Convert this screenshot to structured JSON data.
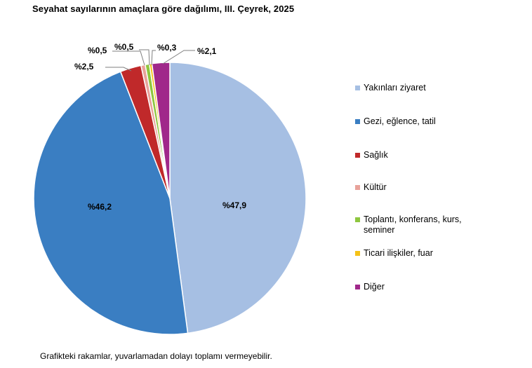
{
  "title": "Seyahat sayılarının amaçlara göre dağılımı, III. Çeyrek, 2025",
  "footnote": "Grafikteki rakamlar, yuvarlamadan dolayı toplamı vermeyebilir.",
  "chart_data": {
    "type": "pie",
    "categories": [
      "Yakınları ziyaret",
      "Gezi, eğlence, tatil",
      "Sağlık",
      "Kültür",
      "Toplantı, konferans, kurs, seminer",
      "Ticari ilişkiler, fuar",
      "Diğer"
    ],
    "values": [
      47.9,
      46.2,
      2.5,
      0.5,
      0.5,
      0.3,
      2.1
    ],
    "labels": [
      "%47,9",
      "%46,2",
      "%2,5",
      "%0,5",
      "%0,5",
      "%0,3",
      "%2,1"
    ],
    "colors": [
      "#a6bfe3",
      "#3a7ec2",
      "#c0292a",
      "#e8a29a",
      "#8ec63f",
      "#f5c218",
      "#a0288a"
    ],
    "legend_position": "right"
  },
  "legend": [
    {
      "label": "Yakınları ziyaret",
      "color": "#a6bfe3"
    },
    {
      "label": "Gezi, eğlence, tatil",
      "color": "#3a7ec2"
    },
    {
      "label": "Sağlık",
      "color": "#c0292a"
    },
    {
      "label": "Kültür",
      "color": "#e8a29a"
    },
    {
      "label": "Toplantı, konferans, kurs, seminer",
      "color": "#8ec63f"
    },
    {
      "label": "Ticari ilişkiler, fuar",
      "color": "#f5c218"
    },
    {
      "label": "Diğer",
      "color": "#a0288a"
    }
  ]
}
